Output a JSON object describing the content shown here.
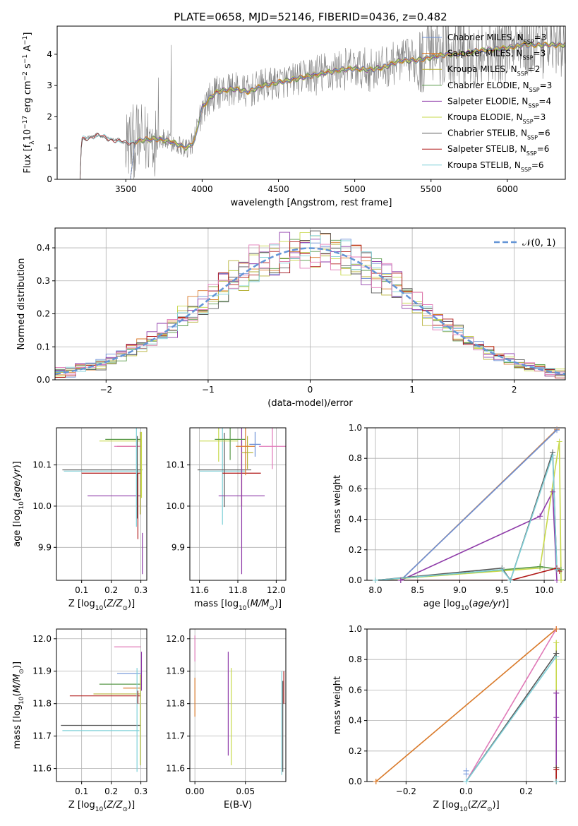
{
  "figure": {
    "title": "PLATE=0658, MJD=52146, FIBERID=0436, z=0.482"
  },
  "colors": {
    "Chabrier MILES": "#6b8fd6",
    "Salpeter MILES": "#d97a2a",
    "Kroupa MILES": "#b7b23a",
    "Chabrier ELODIE": "#5a9a4a",
    "Salpeter ELODIE": "#8e3aa8",
    "Kroupa ELODIE": "#c7d84a",
    "Chabrier STELIB": "#5a5a5a",
    "Salpeter STELIB": "#b01818",
    "Kroupa STELIB": "#7fd0d8",
    "pink": "#e07ab8",
    "data": "#808080",
    "normal": "#6495d6"
  },
  "chart_data": [
    {
      "id": "spectrum",
      "type": "line",
      "title": "PLATE=0658, MJD=52146, FIBERID=0436, z=0.482",
      "xlabel": "wavelength [Angstrom, rest frame]",
      "ylabel": "Flux [f_λ 10^−17 erg cm^−2 s^−1 A^−1]",
      "xlim": [
        3050,
        6380
      ],
      "ylim": [
        0,
        4.9
      ],
      "xticks": [
        3500,
        4000,
        4500,
        5000,
        5500,
        6000
      ],
      "yticks": [
        0,
        1,
        2,
        3,
        4
      ],
      "grid": false,
      "legend_position": "top-right",
      "legend": [
        {
          "main": "Chabrier MILES, N",
          "sub": "SSP",
          "tail": "=3",
          "series": "Chabrier MILES"
        },
        {
          "main": "Salpeter MILES, N",
          "sub": "SSP",
          "tail": "=3",
          "series": "Salpeter MILES"
        },
        {
          "main": "Kroupa MILES, N",
          "sub": "SSP",
          "tail": "=2",
          "series": "Kroupa MILES"
        },
        {
          "main": "Chabrier ELODIE, N",
          "sub": "SSP",
          "tail": "=3",
          "series": "Chabrier ELODIE"
        },
        {
          "main": "Salpeter ELODIE, N",
          "sub": "SSP",
          "tail": "=4",
          "series": "Salpeter ELODIE"
        },
        {
          "main": "Kroupa ELODIE, N",
          "sub": "SSP",
          "tail": "=3",
          "series": "Kroupa ELODIE"
        },
        {
          "main": "Chabrier STELIB, N",
          "sub": "SSP",
          "tail": "=6",
          "series": "Chabrier STELIB"
        },
        {
          "main": "Salpeter STELIB, N",
          "sub": "SSP",
          "tail": "=6",
          "series": "Salpeter STELIB"
        },
        {
          "main": "Kroupa STELIB, N",
          "sub": "SSP",
          "tail": "=6",
          "series": "Kroupa STELIB"
        }
      ],
      "continuum": [
        [
          3200,
          0
        ],
        [
          3210,
          1.28
        ],
        [
          3300,
          1.4
        ],
        [
          3400,
          1.3
        ],
        [
          3500,
          1.15
        ],
        [
          3550,
          1.2
        ],
        [
          3600,
          1.25
        ],
        [
          3700,
          1.3
        ],
        [
          3800,
          1.2
        ],
        [
          3850,
          1.1
        ],
        [
          3900,
          1.0
        ],
        [
          3950,
          1.2
        ],
        [
          4000,
          2.3
        ],
        [
          4050,
          2.6
        ],
        [
          4100,
          2.8
        ],
        [
          4200,
          2.9
        ],
        [
          4300,
          2.8
        ],
        [
          4400,
          3.0
        ],
        [
          4500,
          3.1
        ],
        [
          4600,
          3.2
        ],
        [
          4700,
          3.3
        ],
        [
          4800,
          3.4
        ],
        [
          4900,
          3.5
        ],
        [
          5000,
          3.55
        ],
        [
          5100,
          3.5
        ],
        [
          5200,
          3.6
        ],
        [
          5300,
          3.8
        ],
        [
          5400,
          3.8
        ],
        [
          5500,
          3.9
        ],
        [
          5600,
          4.0
        ],
        [
          5700,
          4.0
        ],
        [
          5800,
          4.1
        ],
        [
          5900,
          4.15
        ],
        [
          6000,
          4.2
        ],
        [
          6100,
          4.3
        ],
        [
          6200,
          4.3
        ]
      ],
      "data_noise": [
        0.05,
        0.05,
        1.2,
        0.35,
        0.55,
        0.7,
        1.1
      ]
    },
    {
      "id": "residuals",
      "type": "line",
      "xlabel": "(data-model)/error",
      "ylabel": "Normed distribution",
      "xlim": [
        -2.5,
        2.5
      ],
      "ylim": [
        0,
        0.46
      ],
      "xticks": [
        -2,
        -1,
        0,
        1,
        2
      ],
      "yticks": [
        0.0,
        0.1,
        0.2,
        0.3,
        0.4
      ],
      "grid": true,
      "legend_position": "top-right",
      "legend": [
        {
          "label": "𝒩(0, 1)"
        }
      ],
      "bin_width": 0.1
    },
    {
      "id": "age_vs_Z",
      "type": "scatter",
      "xlabel": "Z [log10(Z/Z☉)]",
      "ylabel": "age  [log10(age/yr)]",
      "xlim": [
        0.015,
        0.32
      ],
      "ylim": [
        9.82,
        10.19
      ],
      "xticks": [
        0.1,
        0.2,
        0.3
      ],
      "yticks": [
        9.9,
        10.0,
        10.1
      ],
      "grid": true,
      "errorbars": [
        {
          "color": "Chabrier STELIB",
          "x": 0.17,
          "xerr": 0.135,
          "y": 10.088,
          "yerr": 0.0
        },
        {
          "color": "Kroupa STELIB",
          "x": 0.17,
          "xerr": 0.13,
          "y": 10.085,
          "yerr": 0.0
        },
        {
          "color": "Salpeter STELIB",
          "x": 0.2,
          "xerr": 0.1,
          "y": 10.08,
          "yerr": 0.0
        },
        {
          "color": "Salpeter ELODIE",
          "x": 0.21,
          "xerr": 0.09,
          "y": 10.025,
          "yerr": 0.0
        },
        {
          "color": "Kroupa ELODIE",
          "x": 0.23,
          "xerr": 0.07,
          "y": 10.158,
          "yerr": 0.0
        },
        {
          "color": "Chabrier ELODIE",
          "x": 0.24,
          "xerr": 0.06,
          "y": 10.162,
          "yerr": 0.0
        },
        {
          "color": "Salpeter MILES",
          "x": 0.26,
          "xerr": 0.04,
          "y": 10.145,
          "yerr": 0.0
        },
        {
          "color": "pink",
          "x": 0.255,
          "xerr": 0.045,
          "y": 10.145,
          "yerr": 0.0
        },
        {
          "color": "Kroupa STELIB",
          "x": 0.285,
          "xerr": 0.0,
          "y": 10.07,
          "yerr": 0.12
        },
        {
          "color": "Chabrier STELIB",
          "x": 0.288,
          "xerr": 0.0,
          "y": 10.07,
          "yerr": 0.1
        },
        {
          "color": "Salpeter STELIB",
          "x": 0.29,
          "xerr": 0.0,
          "y": 10.0,
          "yerr": 0.08
        },
        {
          "color": "Kroupa MILES",
          "x": 0.298,
          "xerr": 0.0,
          "y": 10.08,
          "yerr": 0.1
        },
        {
          "color": "Kroupa ELODIE",
          "x": 0.302,
          "xerr": 0.0,
          "y": 10.1,
          "yerr": 0.08
        },
        {
          "color": "Salpeter ELODIE",
          "x": 0.305,
          "xerr": 0.0,
          "y": 9.885,
          "yerr": 0.05
        }
      ]
    },
    {
      "id": "age_vs_mass",
      "type": "scatter",
      "xlabel": "mass [log10(M/M☉)]",
      "ylabel": "",
      "xlim": [
        11.55,
        12.05
      ],
      "ylim": [
        9.82,
        10.19
      ],
      "xticks": [
        11.6,
        11.8,
        12.0
      ],
      "yticks": [
        9.9,
        10.0,
        10.1
      ],
      "grid": true,
      "errorbars": [
        {
          "color": "Kroupa STELIB",
          "x": 11.72,
          "xerr": 0.12,
          "y": 10.085,
          "yerr": 0.13
        },
        {
          "color": "Chabrier STELIB",
          "x": 11.73,
          "xerr": 0.14,
          "y": 10.088,
          "yerr": 0.09
        },
        {
          "color": "Salpeter STELIB",
          "x": 11.82,
          "xerr": 0.1,
          "y": 10.08,
          "yerr": 0.08
        },
        {
          "color": "Salpeter ELODIE",
          "x": 11.82,
          "xerr": 0.12,
          "y": 10.025,
          "yerr": 0.19
        },
        {
          "color": "Kroupa ELODIE",
          "x": 11.7,
          "xerr": 0.1,
          "y": 10.158,
          "yerr": 0.05
        },
        {
          "color": "Chabrier ELODIE",
          "x": 11.76,
          "xerr": 0.08,
          "y": 10.162,
          "yerr": 0.05
        },
        {
          "color": "Kroupa MILES",
          "x": 11.85,
          "xerr": 0.03,
          "y": 10.13,
          "yerr": 0.04
        },
        {
          "color": "Salpeter MILES",
          "x": 11.84,
          "xerr": 0.05,
          "y": 10.145,
          "yerr": 0.07
        },
        {
          "color": "Chabrier MILES",
          "x": 11.89,
          "xerr": 0.03,
          "y": 10.15,
          "yerr": 0.03
        },
        {
          "color": "pink",
          "x": 11.98,
          "xerr": 0.07,
          "y": 10.145,
          "yerr": 0.055
        }
      ]
    },
    {
      "id": "massweight_vs_age",
      "type": "line",
      "xlabel": "age  [log10(age/yr)]",
      "ylabel": "mass weight",
      "xlim": [
        7.9,
        10.25
      ],
      "ylim": [
        0,
        1.0
      ],
      "xticks": [
        8.0,
        8.5,
        9.0,
        9.5,
        10.0
      ],
      "yticks": [
        0.0,
        0.2,
        0.4,
        0.6,
        0.8,
        1.0
      ],
      "grid": true,
      "series": [
        {
          "color": "Salpeter MILES",
          "x": [
            8.3,
            10.15
          ],
          "y": [
            0.0,
            0.99
          ]
        },
        {
          "color": "Chabrier MILES",
          "x": [
            8.3,
            10.15
          ],
          "y": [
            0.0,
            0.985
          ]
        },
        {
          "color": "Salpeter ELODIE",
          "x": [
            8.3,
            9.95,
            10.1,
            10.15
          ],
          "y": [
            0.0,
            0.42,
            0.58,
            0.0
          ]
        },
        {
          "color": "Kroupa ELODIE",
          "x": [
            8.0,
            9.95,
            10.18,
            10.2
          ],
          "y": [
            0.0,
            0.08,
            0.91,
            0.0
          ]
        },
        {
          "color": "Chabrier ELODIE",
          "x": [
            8.0,
            9.95,
            10.2
          ],
          "y": [
            0.0,
            0.09,
            0.07
          ]
        },
        {
          "color": "Salpeter STELIB",
          "x": [
            8.0,
            9.6,
            10.15,
            10.18
          ],
          "y": [
            0.0,
            0.0,
            0.08,
            0.06
          ]
        },
        {
          "color": "Chabrier STELIB",
          "x": [
            8.0,
            9.5,
            9.6,
            10.1,
            10.15
          ],
          "y": [
            0.0,
            0.08,
            0.0,
            0.84,
            0.07
          ]
        },
        {
          "color": "Kroupa STELIB",
          "x": [
            8.0,
            9.5,
            9.6,
            10.1,
            10.15
          ],
          "y": [
            0.0,
            0.07,
            0.0,
            0.82,
            0.07
          ]
        }
      ]
    },
    {
      "id": "mass_vs_Z",
      "type": "scatter",
      "xlabel": "Z [log10(Z/Z☉)]",
      "ylabel": "mass [log10(M/M☉)]",
      "xlim": [
        0.015,
        0.32
      ],
      "ylim": [
        11.56,
        12.03
      ],
      "xticks": [
        0.1,
        0.2,
        0.3
      ],
      "yticks": [
        11.6,
        11.7,
        11.8,
        11.9,
        12.0
      ],
      "grid": true,
      "errorbars": [
        {
          "color": "pink",
          "x": 0.255,
          "xerr": 0.045,
          "y": 11.975,
          "yerr": 0.0
        },
        {
          "color": "Chabrier MILES",
          "x": 0.26,
          "xerr": 0.04,
          "y": 11.893,
          "yerr": 0.0
        },
        {
          "color": "Chabrier ELODIE",
          "x": 0.23,
          "xerr": 0.07,
          "y": 11.86,
          "yerr": 0.0
        },
        {
          "color": "Salpeter MILES",
          "x": 0.27,
          "xerr": 0.03,
          "y": 11.848,
          "yerr": 0.0
        },
        {
          "color": "Kroupa MILES",
          "x": 0.22,
          "xerr": 0.08,
          "y": 11.83,
          "yerr": 0.0
        },
        {
          "color": "Salpeter STELIB",
          "x": 0.18,
          "xerr": 0.12,
          "y": 11.824,
          "yerr": 0.0
        },
        {
          "color": "Chabrier STELIB",
          "x": 0.165,
          "xerr": 0.135,
          "y": 11.733,
          "yerr": 0.0
        },
        {
          "color": "Kroupa STELIB",
          "x": 0.165,
          "xerr": 0.13,
          "y": 11.717,
          "yerr": 0.0
        },
        {
          "color": "Kroupa STELIB",
          "x": 0.287,
          "xerr": 0.0,
          "y": 11.75,
          "yerr": 0.16
        },
        {
          "color": "Salpeter STELIB",
          "x": 0.29,
          "xerr": 0.0,
          "y": 11.82,
          "yerr": 0.02
        },
        {
          "color": "Kroupa ELODIE",
          "x": 0.298,
          "xerr": 0.0,
          "y": 11.75,
          "yerr": 0.14
        },
        {
          "color": "Salpeter ELODIE",
          "x": 0.302,
          "xerr": 0.0,
          "y": 11.9,
          "yerr": 0.06
        }
      ]
    },
    {
      "id": "mass_vs_ebv",
      "type": "scatter",
      "xlabel": "E(B-V)",
      "ylabel": "",
      "xlim": [
        -0.005,
        0.09
      ],
      "ylim": [
        11.56,
        12.03
      ],
      "xticks": [
        0.0,
        0.05
      ],
      "yticks": [
        11.6,
        11.7,
        11.8,
        11.9,
        12.0
      ],
      "grid": true,
      "errorbars": [
        {
          "color": "pink",
          "x": 0.0,
          "xerr": 0.0,
          "y": 11.97,
          "yerr": 0.04
        },
        {
          "color": "Salpeter MILES",
          "x": 0.0,
          "xerr": 0.0,
          "y": 11.82,
          "yerr": 0.06
        },
        {
          "color": "Salpeter ELODIE",
          "x": 0.033,
          "xerr": 0.0,
          "y": 11.8,
          "yerr": 0.16
        },
        {
          "color": "Kroupa ELODIE",
          "x": 0.036,
          "xerr": 0.0,
          "y": 11.76,
          "yerr": 0.15
        },
        {
          "color": "Kroupa STELIB",
          "x": 0.086,
          "xerr": 0.0,
          "y": 11.74,
          "yerr": 0.16
        },
        {
          "color": "Chabrier STELIB",
          "x": 0.087,
          "xerr": 0.0,
          "y": 11.73,
          "yerr": 0.14
        },
        {
          "color": "Salpeter STELIB",
          "x": 0.088,
          "xerr": 0.0,
          "y": 11.85,
          "yerr": 0.05
        }
      ]
    },
    {
      "id": "massweight_vs_Z",
      "type": "line",
      "xlabel": "Z [log10(Z/Z☉)]",
      "ylabel": "mass weight",
      "xlim": [
        -0.33,
        0.33
      ],
      "ylim": [
        0,
        1.0
      ],
      "xticks": [
        -0.2,
        0.0,
        0.2
      ],
      "yticks": [
        0.0,
        0.2,
        0.4,
        0.6,
        0.8,
        1.0
      ],
      "grid": true,
      "series": [
        {
          "color": "Salpeter MILES",
          "x": [
            -0.3,
            0.3
          ],
          "y": [
            0.0,
            1.0
          ]
        },
        {
          "color": "pink",
          "x": [
            0.0,
            0.3
          ],
          "y": [
            0.0,
            1.0
          ]
        },
        {
          "color": "Chabrier STELIB",
          "x": [
            0.0,
            0.3
          ],
          "y": [
            0.0,
            0.84
          ]
        },
        {
          "color": "Kroupa STELIB",
          "x": [
            0.0,
            0.3
          ],
          "y": [
            0.0,
            0.82
          ]
        },
        {
          "color": "Kroupa ELODIE",
          "x": [
            0.3,
            0.3
          ],
          "y": [
            0.0,
            0.91
          ]
        },
        {
          "color": "Salpeter ELODIE",
          "x": [
            0.3,
            0.3
          ],
          "y": [
            0.0,
            0.58
          ]
        },
        {
          "color": "Chabrier ELODIE",
          "x": [
            0.3,
            0.3
          ],
          "y": [
            0.0,
            0.09
          ]
        },
        {
          "color": "Salpeter STELIB",
          "x": [
            0.3,
            0.3
          ],
          "y": [
            0.0,
            0.08
          ]
        }
      ],
      "markers": [
        {
          "color": "Chabrier MILES",
          "x": 0.0,
          "y": 0.07
        },
        {
          "color": "Chabrier MILES",
          "x": 0.0,
          "y": 0.05
        },
        {
          "color": "Salpeter MILES",
          "x": -0.3,
          "y": 0.0
        },
        {
          "color": "Salpeter MILES",
          "x": 0.3,
          "y": 1.0
        },
        {
          "color": "Kroupa ELODIE",
          "x": 0.3,
          "y": 0.91
        },
        {
          "color": "Chabrier STELIB",
          "x": 0.3,
          "y": 0.84
        },
        {
          "color": "Salpeter ELODIE",
          "x": 0.3,
          "y": 0.58
        },
        {
          "color": "Salpeter ELODIE",
          "x": 0.3,
          "y": 0.42
        },
        {
          "color": "Chabrier STELIB",
          "x": 0.3,
          "y": 0.09
        },
        {
          "color": "Salpeter STELIB",
          "x": 0.3,
          "y": 0.08
        },
        {
          "color": "Kroupa STELIB",
          "x": 0.3,
          "y": 0.0
        }
      ]
    }
  ]
}
